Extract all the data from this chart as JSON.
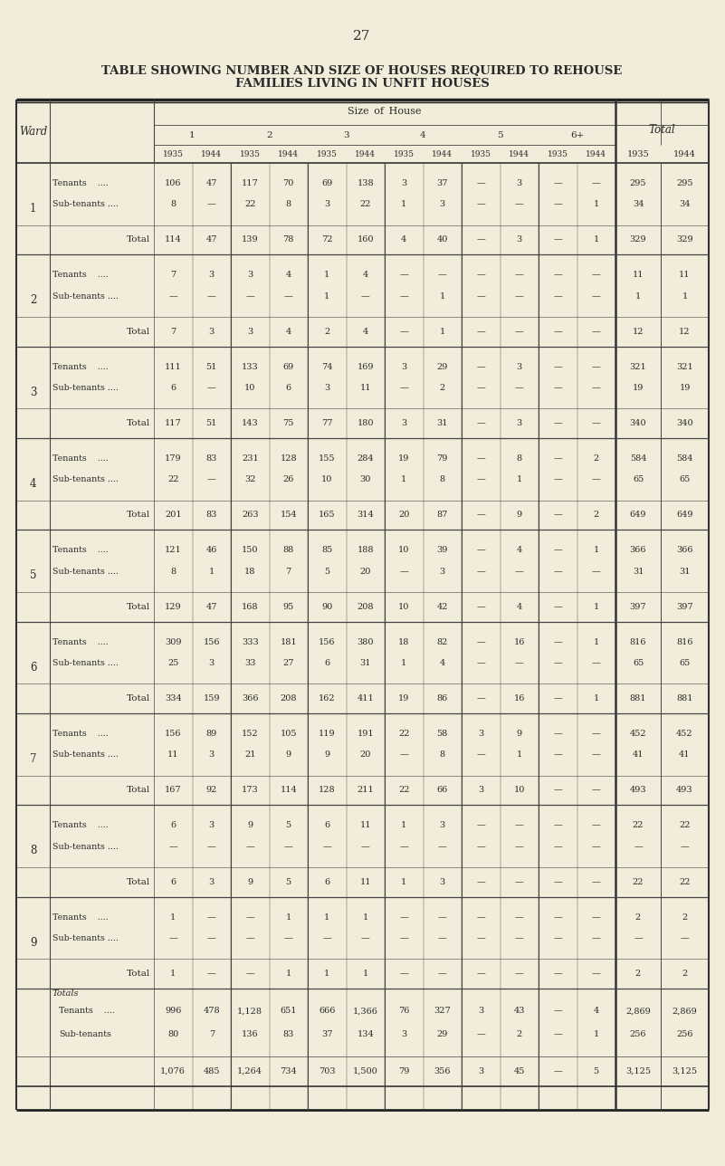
{
  "title_line1": "TABLE SHOWING NUMBER AND SIZE OF HOUSES REQUIRED TO REHOUSE",
  "title_line2": "FAMILIES LIVING IN UNFIT HOUSES",
  "page_number": "27",
  "bg_color": "#f2edda",
  "text_color": "#2a2a2a",
  "wards": [
    {
      "ward": "1",
      "tenant": [
        "106",
        "47",
        "117",
        "70",
        "69",
        "138",
        "3",
        "37",
        "—",
        "3",
        "—",
        "—",
        "295",
        "295"
      ],
      "subtenant": [
        "8",
        "—",
        "22",
        "8",
        "3",
        "22",
        "1",
        "3",
        "—",
        "—",
        "—",
        "1",
        "34",
        "34"
      ],
      "total": [
        "114",
        "47",
        "139",
        "78",
        "72",
        "160",
        "4",
        "40",
        "—",
        "3",
        "—",
        "1",
        "329",
        "329"
      ]
    },
    {
      "ward": "2",
      "tenant": [
        "7",
        "3",
        "3",
        "4",
        "1",
        "4",
        "—",
        "—",
        "—",
        "—",
        "—",
        "—",
        "11",
        "11"
      ],
      "subtenant": [
        "—",
        "—",
        "—",
        "—",
        "1",
        "—",
        "—",
        "1",
        "—",
        "—",
        "—",
        "—",
        "1",
        "1"
      ],
      "total": [
        "7",
        "3",
        "3",
        "4",
        "2",
        "4",
        "—",
        "1",
        "—",
        "—",
        "—",
        "—",
        "12",
        "12"
      ]
    },
    {
      "ward": "3",
      "tenant": [
        "111",
        "51",
        "133",
        "69",
        "74",
        "169",
        "3",
        "29",
        "—",
        "3",
        "—",
        "—",
        "321",
        "321"
      ],
      "subtenant": [
        "6",
        "—",
        "10",
        "6",
        "3",
        "11",
        "—",
        "2",
        "—",
        "—",
        "—",
        "—",
        "19",
        "19"
      ],
      "total": [
        "117",
        "51",
        "143",
        "75",
        "77",
        "180",
        "3",
        "31",
        "—",
        "3",
        "—",
        "—",
        "340",
        "340"
      ]
    },
    {
      "ward": "4",
      "tenant": [
        "179",
        "83",
        "231",
        "128",
        "155",
        "284",
        "19",
        "79",
        "—",
        "8",
        "—",
        "2",
        "584",
        "584"
      ],
      "subtenant": [
        "22",
        "—",
        "32",
        "26",
        "10",
        "30",
        "1",
        "8",
        "—",
        "1",
        "—",
        "—",
        "65",
        "65"
      ],
      "total": [
        "201",
        "83",
        "263",
        "154",
        "165",
        "314",
        "20",
        "87",
        "—",
        "9",
        "—",
        "2",
        "649",
        "649"
      ]
    },
    {
      "ward": "5",
      "tenant": [
        "121",
        "46",
        "150",
        "88",
        "85",
        "188",
        "10",
        "39",
        "—",
        "4",
        "—",
        "1",
        "366",
        "366"
      ],
      "subtenant": [
        "8",
        "1",
        "18",
        "7",
        "5",
        "20",
        "—",
        "3",
        "—",
        "—",
        "—",
        "—",
        "31",
        "31"
      ],
      "total": [
        "129",
        "47",
        "168",
        "95",
        "90",
        "208",
        "10",
        "42",
        "—",
        "4",
        "—",
        "1",
        "397",
        "397"
      ]
    },
    {
      "ward": "6",
      "tenant": [
        "309",
        "156",
        "333",
        "181",
        "156",
        "380",
        "18",
        "82",
        "—",
        "16",
        "—",
        "1",
        "816",
        "816"
      ],
      "subtenant": [
        "25",
        "3",
        "33",
        "27",
        "6",
        "31",
        "1",
        "4",
        "—",
        "—",
        "—",
        "—",
        "65",
        "65"
      ],
      "total": [
        "334",
        "159",
        "366",
        "208",
        "162",
        "411",
        "19",
        "86",
        "—",
        "16",
        "—",
        "1",
        "881",
        "881"
      ]
    },
    {
      "ward": "7",
      "tenant": [
        "156",
        "89",
        "152",
        "105",
        "119",
        "191",
        "22",
        "58",
        "3",
        "9",
        "—",
        "—",
        "452",
        "452"
      ],
      "subtenant": [
        "11",
        "3",
        "21",
        "9",
        "9",
        "20",
        "—",
        "8",
        "—",
        "1",
        "—",
        "—",
        "41",
        "41"
      ],
      "total": [
        "167",
        "92",
        "173",
        "114",
        "128",
        "211",
        "22",
        "66",
        "3",
        "10",
        "—",
        "—",
        "493",
        "493"
      ]
    },
    {
      "ward": "8",
      "tenant": [
        "6",
        "3",
        "9",
        "5",
        "6",
        "11",
        "1",
        "3",
        "—",
        "—",
        "—",
        "—",
        "22",
        "22"
      ],
      "subtenant": [
        "—",
        "—",
        "—",
        "—",
        "—",
        "—",
        "—",
        "—",
        "—",
        "—",
        "—",
        "—",
        "—",
        "—"
      ],
      "total": [
        "6",
        "3",
        "9",
        "5",
        "6",
        "11",
        "1",
        "3",
        "—",
        "—",
        "—",
        "—",
        "22",
        "22"
      ]
    },
    {
      "ward": "9",
      "tenant": [
        "1",
        "—",
        "—",
        "1",
        "1",
        "1",
        "—",
        "—",
        "—",
        "—",
        "—",
        "—",
        "2",
        "2"
      ],
      "subtenant": [
        "—",
        "—",
        "—",
        "—",
        "—",
        "—",
        "—",
        "—",
        "—",
        "—",
        "—",
        "—",
        "—",
        "—"
      ],
      "total": [
        "1",
        "—",
        "—",
        "1",
        "1",
        "1",
        "—",
        "—",
        "—",
        "—",
        "—",
        "—",
        "2",
        "2"
      ]
    }
  ],
  "totals_tenant": [
    "996",
    "478",
    "1,128",
    "651",
    "666",
    "1,366",
    "76",
    "327",
    "3",
    "43",
    "—",
    "4",
    "2,869",
    "2,869"
  ],
  "totals_subtenant": [
    "80",
    "7",
    "136",
    "83",
    "37",
    "134",
    "3",
    "29",
    "—",
    "2",
    "—",
    "1",
    "256",
    "256"
  ],
  "totals_grand": [
    "1,076",
    "485",
    "1,264",
    "734",
    "703",
    "1,500",
    "79",
    "356",
    "3",
    "45",
    "—",
    "5",
    "3,125",
    "3,125"
  ]
}
